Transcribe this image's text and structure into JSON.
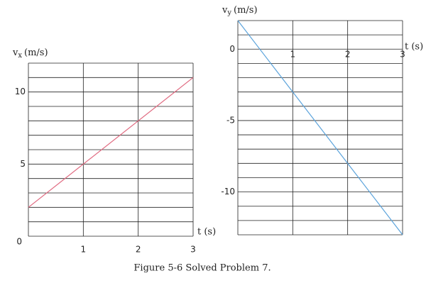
{
  "chart_data": [
    {
      "type": "line",
      "ylabel": "v",
      "ylabel_sub": "x",
      "ylabel_unit": "(m/s)",
      "xlabel": "t (s)",
      "x": [
        0,
        3
      ],
      "series": [
        {
          "values": [
            2,
            11
          ],
          "color": "#e06a80"
        }
      ],
      "xlim": [
        0,
        3
      ],
      "ylim": [
        0,
        12
      ],
      "xticks": [
        1,
        2,
        3
      ],
      "yticks": [
        0,
        5,
        10
      ],
      "grid": true
    },
    {
      "type": "line",
      "ylabel": "v",
      "ylabel_sub": "y",
      "ylabel_unit": "(m/s)",
      "xlabel": "t (s)",
      "x": [
        0,
        3
      ],
      "series": [
        {
          "values": [
            2,
            -13
          ],
          "color": "#5ba3db"
        }
      ],
      "xlim": [
        0,
        3
      ],
      "ylim": [
        -13,
        2
      ],
      "xticks": [
        1,
        2,
        3
      ],
      "yticks": [
        0,
        -5,
        -10
      ],
      "grid": true
    }
  ],
  "caption": "Figure 5-6 Solved Problem 7."
}
